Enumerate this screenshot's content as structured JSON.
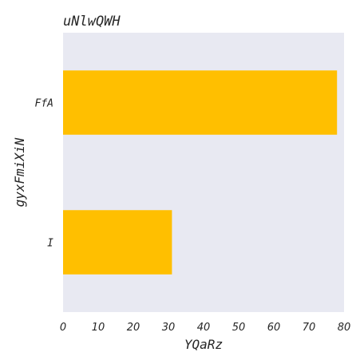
{
  "chart_data": {
    "type": "bar",
    "orientation": "horizontal",
    "title": "uNlwQWH",
    "xlabel": "YQaRz",
    "ylabel": "gyxFmiXiN",
    "categories": [
      "FfA",
      "I"
    ],
    "values": [
      78,
      31
    ],
    "xlim": [
      0,
      80
    ],
    "xticks": [
      0,
      10,
      20,
      30,
      40,
      50,
      60,
      70,
      80
    ],
    "grid": false,
    "legend": "none",
    "colors": {
      "bar": "#FFBF00",
      "plot_background": "#E8E9F2",
      "text": "#262626"
    }
  }
}
